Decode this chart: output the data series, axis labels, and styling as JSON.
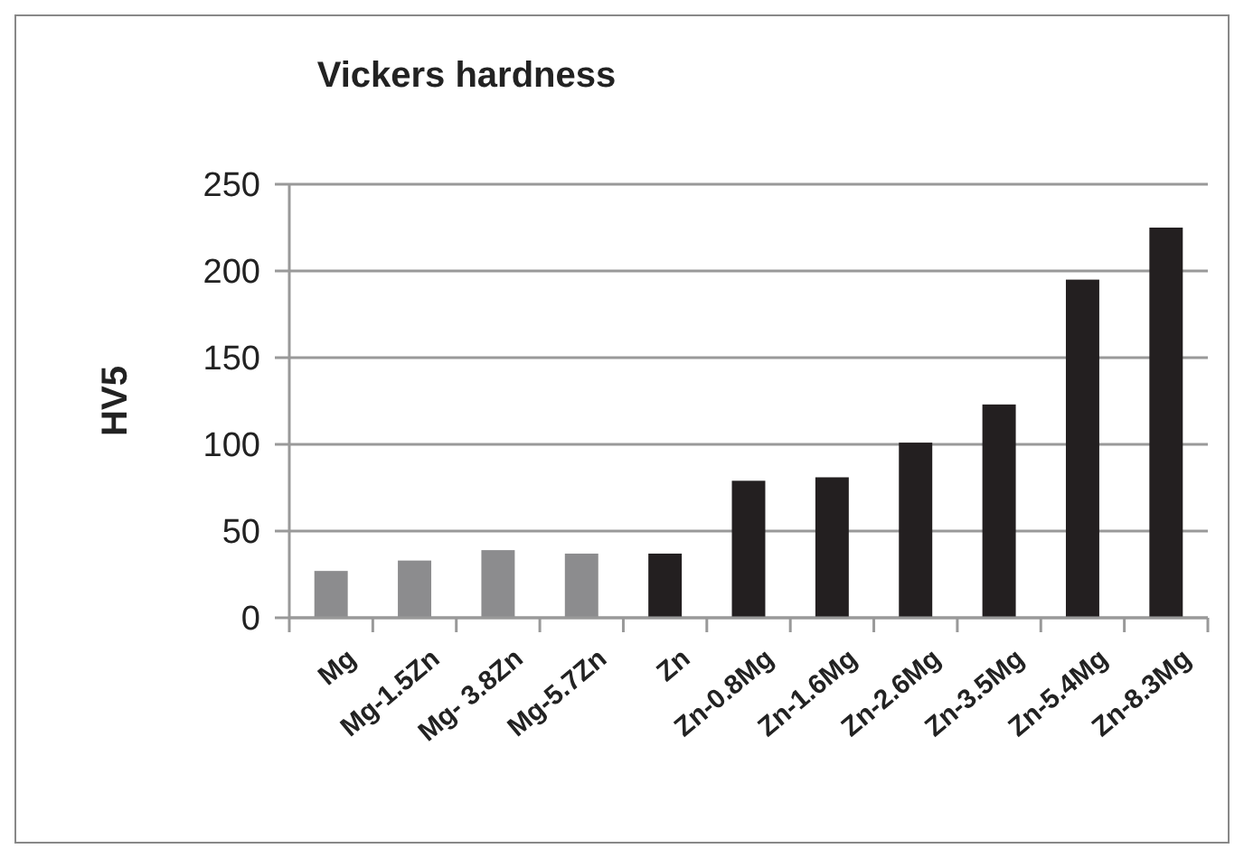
{
  "chart_data": {
    "type": "bar",
    "title": "Vickers hardness",
    "ylabel": "HV5",
    "categories": [
      "Mg",
      "Mg-1.5Zn",
      "Mg- 3.8Zn",
      "Mg-5.7Zn",
      "Zn",
      "Zn-0.8Mg",
      "Zn-1.6Mg",
      "Zn-2.6Mg",
      "Zn-3.5Mg",
      "Zn-5.4Mg",
      "Zn-8.3Mg"
    ],
    "values": [
      27,
      33,
      39,
      37,
      37,
      79,
      81,
      101,
      123,
      195,
      225
    ],
    "colors": [
      "#8c8c8e",
      "#8c8c8e",
      "#8c8c8e",
      "#8c8c8e",
      "#231f20",
      "#231f20",
      "#231f20",
      "#231f20",
      "#231f20",
      "#231f20",
      "#231f20"
    ],
    "ylim": [
      0,
      250
    ],
    "yticks": [
      0,
      50,
      100,
      150,
      200,
      250
    ],
    "grid": "y"
  }
}
